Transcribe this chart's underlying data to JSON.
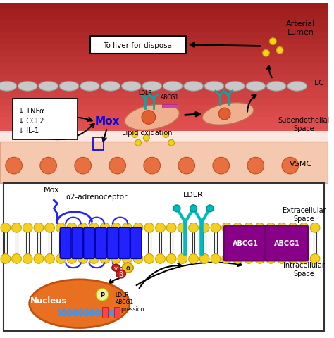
{
  "fig_width": 4.74,
  "fig_height": 4.81,
  "dpi": 100,
  "bg_color": "#ffffff",
  "top_section": {
    "arterial_lumen_gradient_top": "#ff6666",
    "arterial_lumen_gradient_bottom": "#ffcccc",
    "arterial_lumen_label": "Arterial\nLumen",
    "ec_label": "EC",
    "vsmc_label": "VSMC",
    "subendothelial_label": "Subendothelial\nSpace",
    "to_liver_label": "To liver for disposal",
    "lipid_oxidation_label": "Lipid oxidation",
    "mox_label": "Mox",
    "cytokine_label": "↓ TNFα\n↓ CCL2\n↓ IL-1",
    "ldlr_label": "LDLR",
    "abcg1_label": "ABCG1"
  },
  "bottom_section": {
    "extracellular_label": "Extracellular\nSpace",
    "intracellular_label": "Intracellular\nSpace",
    "mox_label": "Mox",
    "receptor_label": "α2-adrenoceptor",
    "ldlr_label": "LDLR",
    "abcg1_label": "ABCG1",
    "nucleus_label": "Nucleus",
    "expression_label": "LDLR\nABCG1\nexpression",
    "membrane_color": "#f5c518",
    "receptor_color": "#1a1aff",
    "ldlr_color": "#00cccc",
    "abcg1_color": "#800080",
    "nucleus_color": "#e87722",
    "alpha_color": "#f0c020",
    "beta_color": "#cc0000",
    "gamma_color": "#cc0000"
  }
}
